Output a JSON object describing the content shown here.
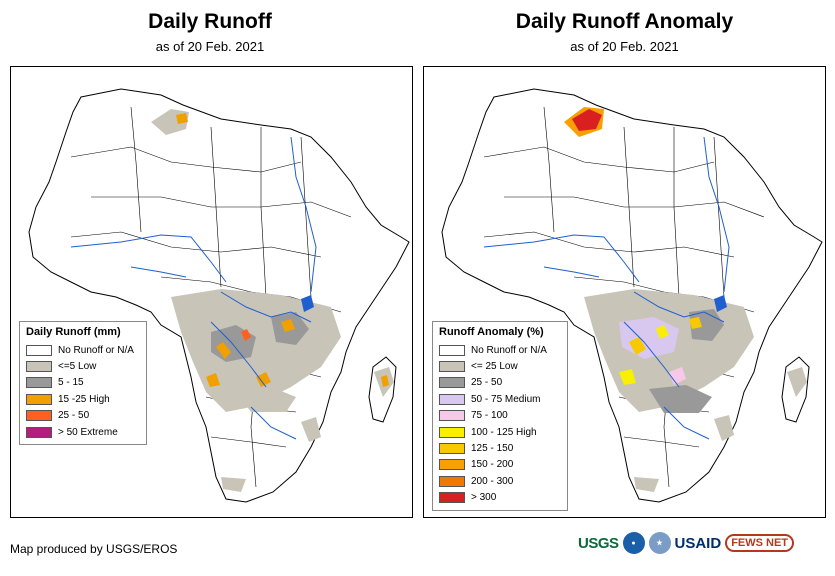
{
  "left_panel": {
    "title": "Daily Runoff",
    "subtitle": "as of 20 Feb. 2021",
    "legend": {
      "title": "Daily Runoff (mm)",
      "items": [
        {
          "label": "No Runoff or N/A",
          "color": "#ffffff"
        },
        {
          "label": "<=5 Low",
          "color": "#c8c4b8"
        },
        {
          "label": "5 - 15",
          "color": "#999999"
        },
        {
          "label": "15 -25 High",
          "color": "#f0a000"
        },
        {
          "label": "25 - 50",
          "color": "#ff6020"
        },
        {
          "label": "> 50 Extreme",
          "color": "#b0207a"
        }
      ]
    }
  },
  "right_panel": {
    "title": "Daily Runoff Anomaly",
    "subtitle": "as of 20 Feb. 2021",
    "legend": {
      "title": "Runoff Anomaly (%)",
      "items": [
        {
          "label": "No Runoff or N/A",
          "color": "#ffffff"
        },
        {
          "label": "<= 25 Low",
          "color": "#c8c4b8"
        },
        {
          "label": "25 - 50",
          "color": "#999999"
        },
        {
          "label": "50 - 75 Medium",
          "color": "#d8c8f0"
        },
        {
          "label": "75 - 100",
          "color": "#f8c8e8"
        },
        {
          "label": "100 - 125 High",
          "color": "#f8f000"
        },
        {
          "label": "125 - 150",
          "color": "#f8c800"
        },
        {
          "label": "150 - 200",
          "color": "#f8a000"
        },
        {
          "label": "200 - 300",
          "color": "#f07800"
        },
        {
          "label": "> 300",
          "color": "#d82020"
        }
      ]
    }
  },
  "footer": "Map produced by USGS/EROS",
  "logos": {
    "usgs": "USGS",
    "usaid": "USAID",
    "fews": "FEWS NET"
  },
  "colors": {
    "river": "#1f5fd0",
    "border": "#000000",
    "low": "#c8c4b8",
    "mid": "#999999",
    "high": "#f0a000",
    "red": "#d82020"
  }
}
